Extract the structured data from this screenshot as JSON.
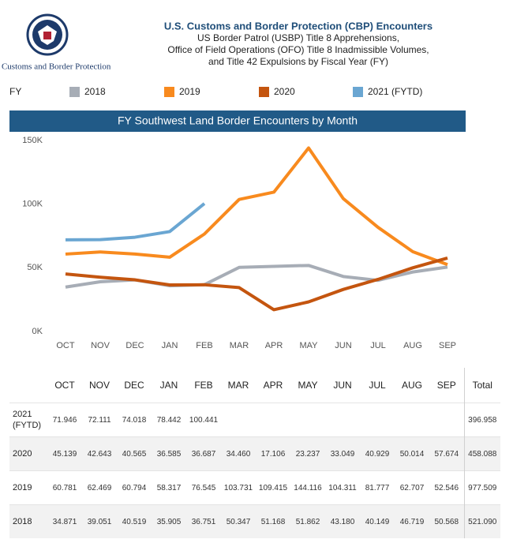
{
  "header": {
    "agency": "U.S. Customs and Border Protection",
    "title": "U.S. Customs and Border Protection (CBP) Encounters",
    "subtitle_lines": [
      "US Border Patrol (USBP) Title 8 Apprehensions,",
      "Office of Field Operations (OFO) Title 8 Inadmissible Volumes,",
      "and Title 42 Expulsions by Fiscal Year (FY)"
    ]
  },
  "legend_title": "FY",
  "chart_data": {
    "type": "line",
    "title": "FY Southwest Land Border Encounters by Month",
    "categories": [
      "OCT",
      "NOV",
      "DEC",
      "JAN",
      "FEB",
      "MAR",
      "APR",
      "MAY",
      "JUN",
      "JUL",
      "AUG",
      "SEP"
    ],
    "series": [
      {
        "name": "2018",
        "color": "#a7adb6",
        "values": [
          34871,
          39051,
          40519,
          35905,
          36751,
          50347,
          51168,
          51862,
          43180,
          40149,
          46719,
          50568
        ]
      },
      {
        "name": "2019",
        "color": "#f88a1e",
        "values": [
          60781,
          62469,
          60794,
          58317,
          76545,
          103731,
          109415,
          144116,
          104311,
          81777,
          62707,
          52546
        ]
      },
      {
        "name": "2020",
        "color": "#c4550f",
        "values": [
          45139,
          42643,
          40565,
          36585,
          36687,
          34460,
          17106,
          23237,
          33049,
          40929,
          50014,
          57674
        ]
      },
      {
        "name": "2021 (FYTD)",
        "color": "#6aa6d2",
        "values": [
          71946,
          72111,
          74018,
          78442,
          100441,
          null,
          null,
          null,
          null,
          null,
          null,
          null
        ]
      }
    ],
    "ylim": [
      0,
      150000
    ],
    "yticks": [
      {
        "value": 0,
        "label": "0K"
      },
      {
        "value": 50000,
        "label": "50K"
      },
      {
        "value": 100000,
        "label": "100K"
      },
      {
        "value": 150000,
        "label": "150K"
      }
    ],
    "grid": false
  },
  "table": {
    "total_label": "Total",
    "rows": [
      {
        "label": "2021 (FYTD)",
        "cells": [
          "71.946",
          "72.111",
          "74.018",
          "78.442",
          "100.441",
          null,
          null,
          null,
          null,
          null,
          null,
          null
        ],
        "total": "396.958"
      },
      {
        "label": "2020",
        "cells": [
          "45.139",
          "42.643",
          "40.565",
          "36.585",
          "36.687",
          "34.460",
          "17.106",
          "23.237",
          "33.049",
          "40.929",
          "50.014",
          "57.674"
        ],
        "total": "458.088"
      },
      {
        "label": "2019",
        "cells": [
          "60.781",
          "62.469",
          "60.794",
          "58.317",
          "76.545",
          "103.731",
          "109.415",
          "144.116",
          "104.311",
          "81.777",
          "62.707",
          "52.546"
        ],
        "total": "977.509"
      },
      {
        "label": "2018",
        "cells": [
          "34.871",
          "39.051",
          "40.519",
          "35.905",
          "36.751",
          "50.347",
          "51.168",
          "51.862",
          "43.180",
          "40.149",
          "46.719",
          "50.568"
        ],
        "total": "521.090"
      }
    ]
  }
}
